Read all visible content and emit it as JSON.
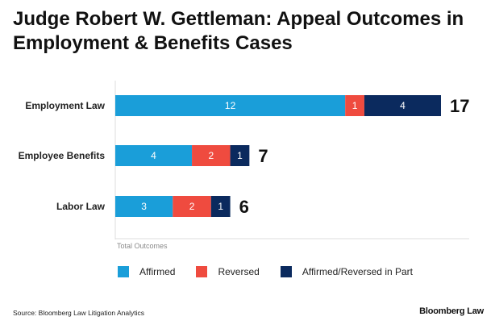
{
  "chart_data": {
    "type": "bar",
    "orientation": "horizontal",
    "stacked": true,
    "title": "Judge Robert W. Gettleman: Appeal Outcomes in Employment & Benefits Cases",
    "categories": [
      "Employment Law",
      "Employee Benefits",
      "Labor Law"
    ],
    "series": [
      {
        "name": "Affirmed",
        "color": "#1a9ed9",
        "values": [
          12,
          4,
          3
        ]
      },
      {
        "name": "Reversed",
        "color": "#ef4b3f",
        "values": [
          1,
          2,
          2
        ]
      },
      {
        "name": "Affirmed/Reversed in Part",
        "color": "#0b2a5e",
        "values": [
          4,
          1,
          1
        ]
      }
    ],
    "totals": [
      17,
      7,
      6
    ],
    "xlabel": "Total Outcomes",
    "ylabel": "",
    "xlim": [
      0,
      17
    ],
    "grid": false,
    "legend": "bottom"
  },
  "footer": {
    "source": "Source: Bloomberg Law Litigation Analytics",
    "brand": "Bloomberg Law"
  }
}
